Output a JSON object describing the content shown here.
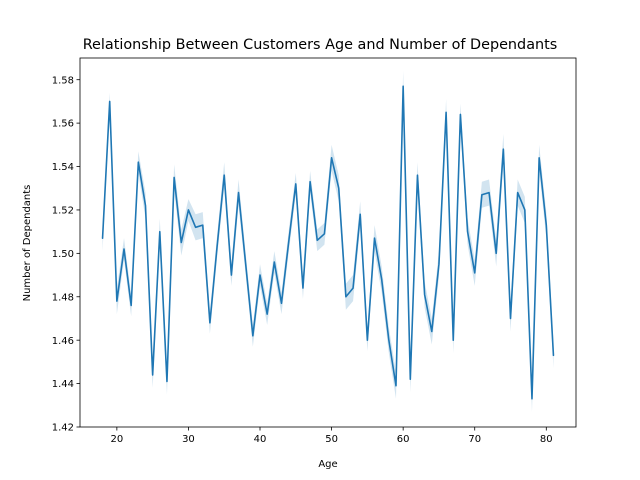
{
  "chart_data": {
    "type": "line",
    "title": "Relationship Between Customers Age and Number of Dependants",
    "xlabel": "Age",
    "ylabel": "Number of Dependants",
    "xlim": [
      14.85,
      84.15
    ],
    "ylim": [
      1.42,
      1.59
    ],
    "xticks": [
      20,
      30,
      40,
      50,
      60,
      70,
      80
    ],
    "yticks": [
      1.42,
      1.44,
      1.46,
      1.48,
      1.5,
      1.52,
      1.54,
      1.56,
      1.58
    ],
    "ytick_labels": [
      "1.42",
      "1.44",
      "1.46",
      "1.48",
      "1.50",
      "1.52",
      "1.54",
      "1.56",
      "1.58"
    ],
    "grid": false,
    "legend": "none",
    "line_color": "#1f77b4",
    "band_color": "#1f77b4",
    "series": [
      {
        "x": [
          18,
          19,
          20,
          21,
          22,
          23,
          24,
          25,
          26,
          27,
          28,
          29,
          30,
          31,
          32,
          33,
          34,
          35,
          36,
          37,
          38,
          39,
          40,
          41,
          42,
          43,
          44,
          45,
          46,
          47,
          48,
          49,
          50,
          51,
          52,
          53,
          54,
          55,
          56,
          57,
          58,
          59,
          60,
          61,
          62,
          63,
          64,
          65,
          66,
          67,
          68,
          69,
          70,
          71,
          72,
          73,
          74,
          75,
          76,
          77,
          78,
          79,
          80,
          81
        ],
        "y": [
          1.507,
          1.57,
          1.478,
          1.502,
          1.476,
          1.542,
          1.522,
          1.444,
          1.51,
          1.441,
          1.535,
          1.505,
          1.52,
          1.512,
          1.513,
          1.468,
          1.503,
          1.536,
          1.49,
          1.528,
          1.495,
          1.462,
          1.49,
          1.472,
          1.496,
          1.477,
          1.505,
          1.532,
          1.484,
          1.533,
          1.506,
          1.509,
          1.544,
          1.53,
          1.48,
          1.484,
          1.518,
          1.46,
          1.507,
          1.488,
          1.46,
          1.439,
          1.577,
          1.442,
          1.536,
          1.481,
          1.464,
          1.495,
          1.565,
          1.46,
          1.564,
          1.51,
          1.491,
          1.527,
          1.528,
          1.5,
          1.548,
          1.47,
          1.528,
          1.52,
          1.433,
          1.544,
          1.513,
          1.453
        ],
        "band": [
          0.006,
          0.004,
          0.006,
          0.005,
          0.005,
          0.005,
          0.006,
          0.006,
          0.006,
          0.006,
          0.006,
          0.006,
          0.005,
          0.006,
          0.006,
          0.005,
          0.005,
          0.006,
          0.005,
          0.006,
          0.005,
          0.005,
          0.005,
          0.005,
          0.005,
          0.005,
          0.005,
          0.005,
          0.005,
          0.005,
          0.005,
          0.005,
          0.006,
          0.006,
          0.006,
          0.006,
          0.006,
          0.005,
          0.006,
          0.006,
          0.006,
          0.006,
          0.007,
          0.006,
          0.006,
          0.006,
          0.006,
          0.006,
          0.006,
          0.006,
          0.005,
          0.006,
          0.006,
          0.006,
          0.006,
          0.006,
          0.007,
          0.006,
          0.006,
          0.006,
          0.006,
          0.006,
          0.006,
          0.006
        ]
      }
    ]
  }
}
